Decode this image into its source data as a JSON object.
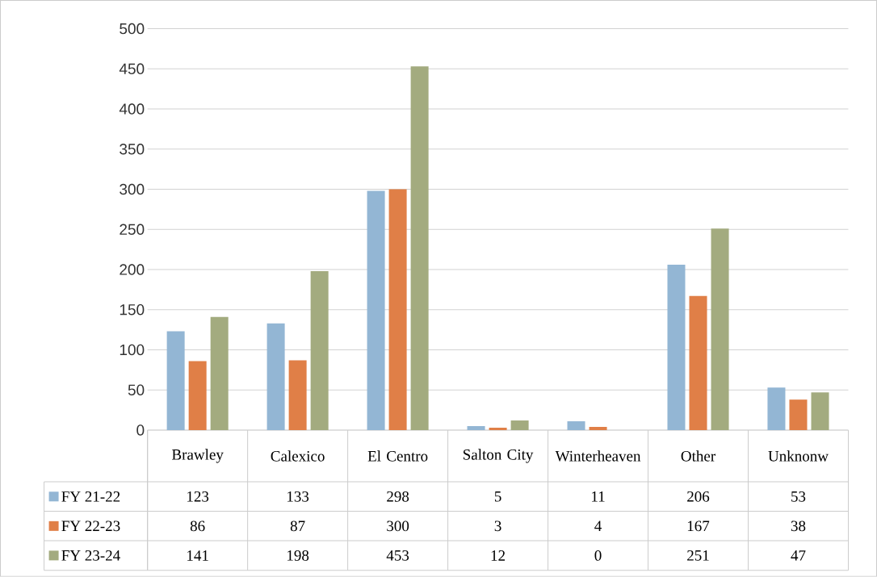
{
  "chart_data": {
    "type": "bar",
    "categories": [
      "Brawley",
      "Calexico",
      "El Centro",
      "Salton City",
      "Winterheaven",
      "Other",
      "Unknonw"
    ],
    "series": [
      {
        "name": "FY 21-22",
        "color": "#93b6d4",
        "values": [
          123,
          133,
          298,
          5,
          11,
          206,
          53
        ]
      },
      {
        "name": "FY 22-23",
        "color": "#e07f47",
        "values": [
          86,
          87,
          300,
          3,
          4,
          167,
          38
        ]
      },
      {
        "name": "FY 23-24",
        "color": "#a3ab7f",
        "values": [
          141,
          198,
          453,
          12,
          0,
          251,
          47
        ]
      }
    ],
    "ylim": [
      0,
      500
    ],
    "yticks": [
      0,
      50,
      100,
      150,
      200,
      250,
      300,
      350,
      400,
      450,
      500
    ],
    "grid": "y",
    "legend": "bottom",
    "data_labels": true
  }
}
